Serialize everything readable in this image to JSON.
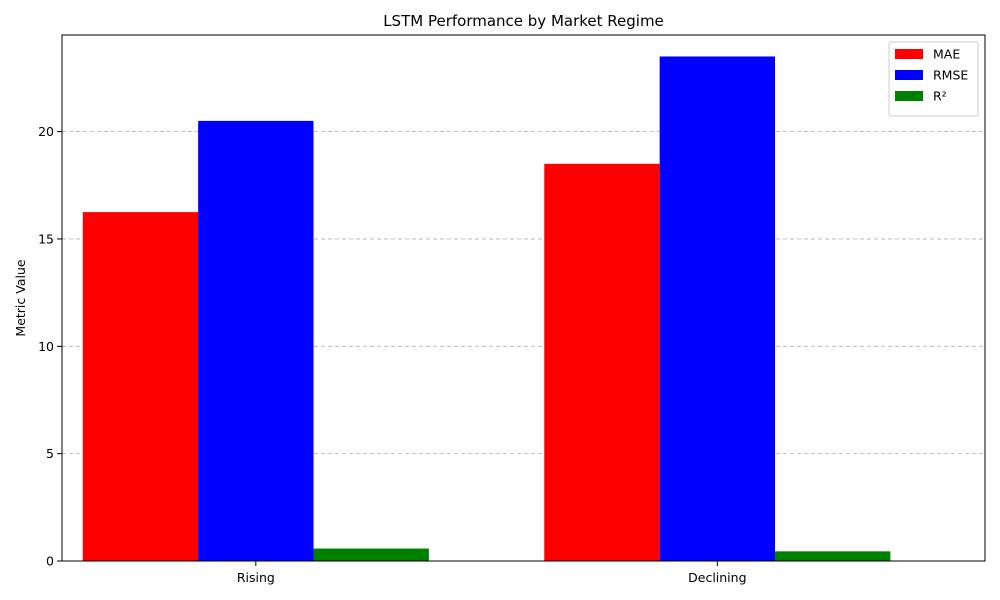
{
  "chart_data": {
    "type": "bar",
    "title": "LSTM Performance by Market Regime",
    "xlabel": "",
    "ylabel": "Metric Value",
    "categories": [
      "Rising",
      "Declining"
    ],
    "series": [
      {
        "name": "MAE",
        "color": "#ff0000",
        "values": [
          16.25,
          18.5
        ]
      },
      {
        "name": "RMSE",
        "color": "#0000ff",
        "values": [
          20.5,
          23.5
        ]
      },
      {
        "name": "R²",
        "color": "#008000",
        "values": [
          0.58,
          0.45
        ]
      }
    ],
    "ylim": [
      0,
      24.5
    ],
    "yticks": [
      0,
      5,
      10,
      15,
      20
    ],
    "grid": "y-dashed",
    "legend_position": "top-right"
  }
}
